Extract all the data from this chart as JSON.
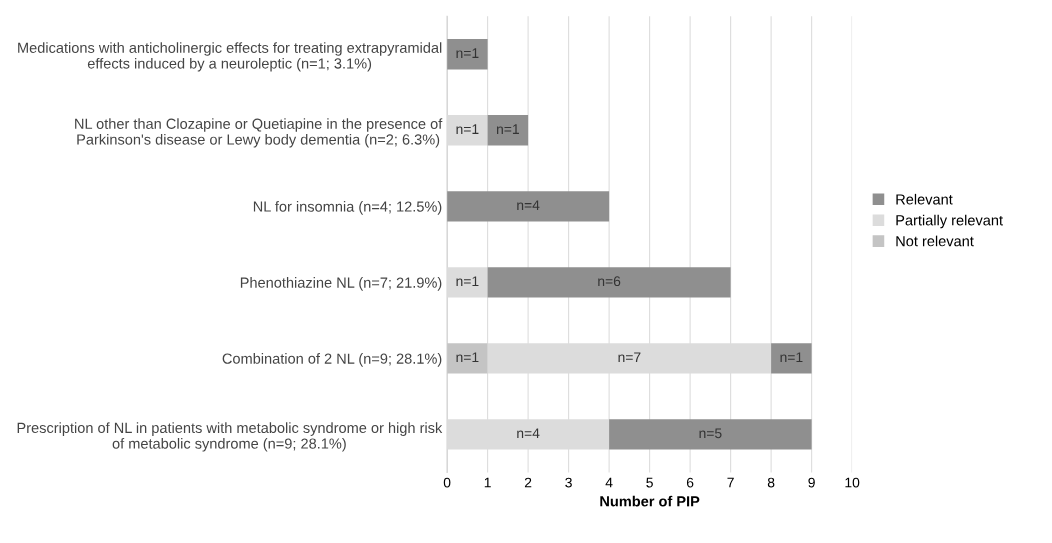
{
  "chart_data": {
    "type": "bar",
    "orientation": "horizontal",
    "stacked": true,
    "xlabel": "Number of PIP",
    "categories": [
      "Medications with anticholinergic effects for treating extrapyramidal effects induced by a neuroleptic (n=1; 3.1%)",
      "NL other than Clozapine or Quetiapine in the presence of Parkinson's disease or Lewy body dementia (n=2; 6.3%)",
      "NL for insomnia (n=4; 12.5%)",
      "Phenothiazine NL (n=7; 21.9%)",
      "Combination of 2 NL (n=9; 28.1%)",
      "Prescription of NL in patients with metabolic syndrome or high risk of metabolic syndrome (n=9; 28.1%)"
    ],
    "series": [
      {
        "name": "Not relevant",
        "color": "#c4c4c4",
        "values": [
          null,
          null,
          null,
          null,
          1,
          null
        ],
        "value_labels": [
          null,
          null,
          null,
          null,
          "n=1",
          null
        ]
      },
      {
        "name": "Partially relevant",
        "color": "#dcdcdc",
        "values": [
          null,
          1,
          null,
          1,
          7,
          4
        ],
        "value_labels": [
          null,
          "n=1",
          null,
          "n=1",
          "n=7",
          "n=4"
        ]
      },
      {
        "name": "Relevant",
        "color": "#8f8f8f",
        "values": [
          1,
          1,
          4,
          6,
          1,
          5
        ],
        "value_labels": [
          "n=1",
          "n=1",
          "n=4",
          "n=6",
          "n=1",
          "n=5"
        ]
      }
    ],
    "xlim": [
      0,
      10
    ],
    "xticks": [
      0,
      1,
      2,
      3,
      4,
      5,
      6,
      7,
      8,
      9,
      10
    ],
    "grid": "x",
    "legend": "right"
  }
}
